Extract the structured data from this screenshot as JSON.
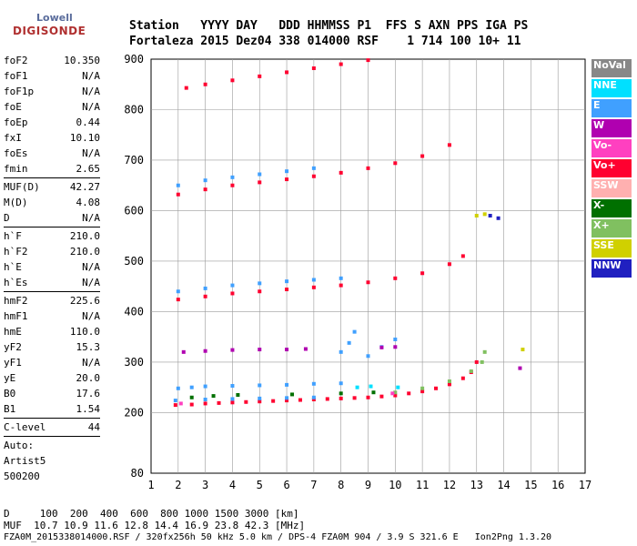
{
  "logo": {
    "line1": "Lowell",
    "line2": "DIGISONDE"
  },
  "header": {
    "labels": "Station   YYYY DAY   DDD HHMMSS P1  FFS S AXN PPS IGA PS",
    "values": "Fortaleza 2015 Dez04 338 014000 RSF    1 714 100 10+ 11"
  },
  "params": {
    "g1": [
      {
        "name": "foF2",
        "value": "10.350"
      },
      {
        "name": "foF1",
        "value": "N/A"
      },
      {
        "name": "foF1p",
        "value": "N/A"
      },
      {
        "name": "foE",
        "value": "N/A"
      },
      {
        "name": "foEp",
        "value": "0.44"
      },
      {
        "name": "fxI",
        "value": "10.10"
      },
      {
        "name": "foEs",
        "value": "N/A"
      },
      {
        "name": "fmin",
        "value": "2.65"
      }
    ],
    "g2": [
      {
        "name": "MUF(D)",
        "value": "42.27"
      },
      {
        "name": "M(D)",
        "value": "4.08"
      },
      {
        "name": "D",
        "value": "N/A"
      }
    ],
    "g3": [
      {
        "name": "h`F",
        "value": "210.0"
      },
      {
        "name": "h`F2",
        "value": "210.0"
      },
      {
        "name": "h`E",
        "value": "N/A"
      },
      {
        "name": "h`Es",
        "value": "N/A"
      }
    ],
    "g4": [
      {
        "name": "hmF2",
        "value": "225.6"
      },
      {
        "name": "hmF1",
        "value": "N/A"
      },
      {
        "name": "hmE",
        "value": "110.0"
      },
      {
        "name": "yF2",
        "value": "15.3"
      },
      {
        "name": "yF1",
        "value": "N/A"
      },
      {
        "name": "yE",
        "value": "20.0"
      },
      {
        "name": "B0",
        "value": "17.6"
      },
      {
        "name": "B1",
        "value": "1.54"
      }
    ],
    "clevel": {
      "name": "C-level",
      "value": "44"
    },
    "auto": [
      "Auto:",
      "Artist5",
      "500200"
    ]
  },
  "footer": {
    "d_line": "D     100  200  400  600  800 1000 1500 3000 [km]",
    "muf_line": "MUF  10.7 10.9 11.6 12.8 14.4 16.9 23.8 42.3 [MHz]",
    "file_line": "FZA0M_2015338014000.RSF / 320fx256h 50 kHz 5.0 km / DPS-4 FZA0M 904 / 3.9 S 321.6 E   Ion2Png 1.3.20"
  },
  "legend": [
    {
      "label": "NoVal",
      "color": "#888888"
    },
    {
      "label": "NNE",
      "color": "#00e0ff"
    },
    {
      "label": "E",
      "color": "#40a0ff"
    },
    {
      "label": "W",
      "color": "#b000b0"
    },
    {
      "label": "Vo-",
      "color": "#ff40c0"
    },
    {
      "label": "Vo+",
      "color": "#ff0030"
    },
    {
      "label": "SSW",
      "color": "#ffb0b0"
    },
    {
      "label": "X-",
      "color": "#007000"
    },
    {
      "label": "X+",
      "color": "#80c060"
    },
    {
      "label": "SSE",
      "color": "#d0d000"
    },
    {
      "label": "NNW",
      "color": "#2020c0"
    }
  ],
  "chart_data": {
    "type": "scatter",
    "xlim": [
      1,
      17
    ],
    "ylim": [
      80,
      900
    ],
    "x_ticks": [
      1,
      2,
      3,
      4,
      5,
      6,
      7,
      8,
      9,
      10,
      11,
      12,
      13,
      14,
      15,
      16,
      17
    ],
    "y_ticks": [
      80,
      200,
      300,
      400,
      500,
      600,
      700,
      800,
      900
    ],
    "grid": true,
    "series": [
      {
        "name": "Vo+",
        "color": "#ff0030",
        "points": [
          [
            1.9,
            215
          ],
          [
            2.5,
            216
          ],
          [
            3,
            218
          ],
          [
            3.5,
            219
          ],
          [
            4,
            220
          ],
          [
            4.5,
            221
          ],
          [
            5,
            222
          ],
          [
            5.5,
            223
          ],
          [
            6,
            224
          ],
          [
            6.5,
            225
          ],
          [
            7,
            226
          ],
          [
            7.5,
            227
          ],
          [
            8,
            228
          ],
          [
            8.5,
            229
          ],
          [
            9,
            230
          ],
          [
            9.5,
            232
          ],
          [
            10,
            234
          ],
          [
            10.5,
            238
          ],
          [
            11,
            242
          ],
          [
            11.5,
            248
          ],
          [
            12,
            256
          ],
          [
            12.5,
            268
          ],
          [
            12.8,
            280
          ],
          [
            13,
            300
          ],
          [
            2,
            424
          ],
          [
            3,
            430
          ],
          [
            4,
            436
          ],
          [
            5,
            440
          ],
          [
            6,
            444
          ],
          [
            7,
            448
          ],
          [
            8,
            452
          ],
          [
            9,
            458
          ],
          [
            10,
            466
          ],
          [
            11,
            476
          ],
          [
            12,
            494
          ],
          [
            12.5,
            510
          ],
          [
            2,
            632
          ],
          [
            3,
            642
          ],
          [
            4,
            650
          ],
          [
            5,
            656
          ],
          [
            6,
            662
          ],
          [
            7,
            668
          ],
          [
            8,
            675
          ],
          [
            9,
            684
          ],
          [
            10,
            694
          ],
          [
            11,
            708
          ],
          [
            12,
            730
          ],
          [
            2.3,
            843
          ],
          [
            3,
            850
          ],
          [
            4,
            858
          ],
          [
            5,
            866
          ],
          [
            6,
            874
          ],
          [
            7,
            882
          ],
          [
            8,
            890
          ],
          [
            9,
            898
          ]
        ]
      },
      {
        "name": "E",
        "color": "#40a0ff",
        "points": [
          [
            2,
            248
          ],
          [
            2.5,
            250
          ],
          [
            3,
            252
          ],
          [
            4,
            253
          ],
          [
            5,
            254
          ],
          [
            6,
            255
          ],
          [
            7,
            257
          ],
          [
            8,
            258
          ],
          [
            1.9,
            224
          ],
          [
            3,
            226
          ],
          [
            4,
            227
          ],
          [
            5,
            228
          ],
          [
            6,
            229
          ],
          [
            7,
            230
          ],
          [
            8,
            320
          ],
          [
            8.3,
            338
          ],
          [
            8.5,
            360
          ],
          [
            9,
            312
          ],
          [
            9.5,
            330
          ],
          [
            10,
            345
          ],
          [
            2,
            440
          ],
          [
            3,
            446
          ],
          [
            4,
            452
          ],
          [
            5,
            456
          ],
          [
            6,
            460
          ],
          [
            7,
            463
          ],
          [
            8,
            466
          ],
          [
            2,
            650
          ],
          [
            3,
            660
          ],
          [
            4,
            666
          ],
          [
            5,
            672
          ],
          [
            6,
            678
          ],
          [
            7,
            684
          ]
        ]
      },
      {
        "name": "W",
        "color": "#b000b0",
        "points": [
          [
            2.2,
            320
          ],
          [
            3,
            322
          ],
          [
            4,
            324
          ],
          [
            5,
            325
          ],
          [
            6,
            325
          ],
          [
            6.7,
            326
          ],
          [
            9.5,
            329
          ],
          [
            10,
            330
          ],
          [
            14.6,
            288
          ]
        ]
      },
      {
        "name": "X+",
        "color": "#80c060",
        "points": [
          [
            10,
            240
          ],
          [
            11,
            248
          ],
          [
            12,
            262
          ],
          [
            12.8,
            282
          ],
          [
            13.2,
            300
          ],
          [
            13.3,
            320
          ]
        ]
      },
      {
        "name": "X-",
        "color": "#007000",
        "points": [
          [
            2.5,
            230
          ],
          [
            3.3,
            233
          ],
          [
            4.2,
            235
          ],
          [
            6.2,
            236
          ],
          [
            8,
            238
          ],
          [
            9.2,
            240
          ]
        ]
      },
      {
        "name": "SSE",
        "color": "#d0d000",
        "points": [
          [
            13,
            590
          ],
          [
            13.3,
            593
          ],
          [
            14.7,
            325
          ]
        ]
      },
      {
        "name": "NNW",
        "color": "#2020c0",
        "points": [
          [
            13.5,
            590
          ],
          [
            13.8,
            585
          ]
        ]
      },
      {
        "name": "NNE",
        "color": "#00e0ff",
        "points": [
          [
            8.6,
            250
          ],
          [
            9.1,
            252
          ],
          [
            10.1,
            250
          ]
        ]
      },
      {
        "name": "Vo-",
        "color": "#ff40c0",
        "points": [
          [
            2.1,
            218
          ],
          [
            9.9,
            238
          ]
        ]
      }
    ]
  }
}
